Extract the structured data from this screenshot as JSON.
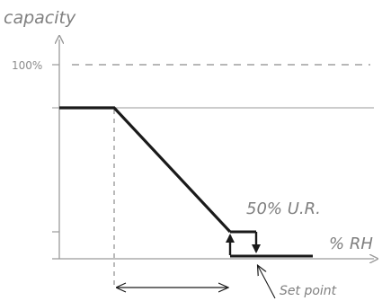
{
  "diagram": {
    "y_axis_label": "capacity",
    "x_axis_label": "% RH",
    "max_label": "100%",
    "annotation_label": "50% U.R.",
    "setpoint_label": "Set point",
    "colors": {
      "axis": "#9a9a9a",
      "curve": "#1a1a1a",
      "dashed": "#8c8c8c",
      "text": "#7f7f7f"
    },
    "icons": [
      "hysteresis-up-arrow-icon",
      "hysteresis-down-arrow-icon",
      "double-headed-arrow-icon",
      "pointer-arrow-icon"
    ]
  }
}
